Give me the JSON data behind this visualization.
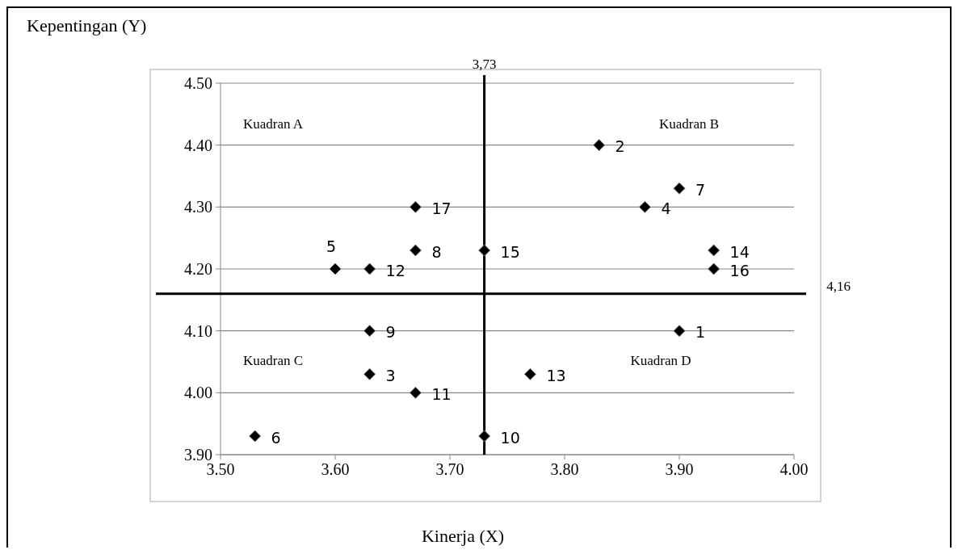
{
  "chart_data": {
    "type": "scatter",
    "xlabel": "Kinerja (X)",
    "ylabel": "Kepentingan (Y)",
    "x": [
      3.9,
      3.83,
      3.63,
      3.87,
      3.6,
      3.53,
      3.9,
      3.67,
      3.63,
      3.73,
      3.67,
      3.63,
      3.77,
      3.93,
      3.73,
      3.93,
      3.67
    ],
    "values": [
      4.1,
      4.4,
      4.03,
      4.3,
      4.2,
      3.93,
      4.33,
      4.23,
      4.1,
      3.93,
      4.0,
      4.2,
      4.03,
      4.23,
      4.23,
      4.2,
      4.3
    ],
    "color": "#000000",
    "marker": "diamond",
    "xlim": [
      3.5,
      4.0
    ],
    "xticks": [
      {
        "value": 3.5,
        "label": "3.50"
      },
      {
        "value": 3.6,
        "label": "3.60"
      },
      {
        "value": 3.7,
        "label": "3.70"
      },
      {
        "value": 3.8,
        "label": "3.80"
      },
      {
        "value": 3.9,
        "label": "3.90"
      },
      {
        "value": 4.0,
        "label": "4.00"
      }
    ],
    "ylim": [
      3.9,
      4.5
    ],
    "yticks": [
      {
        "value": 3.9,
        "label": "3.90"
      },
      {
        "value": 4.0,
        "label": "4.00"
      },
      {
        "value": 4.1,
        "label": "4.10"
      },
      {
        "value": 4.2,
        "label": "4.20"
      },
      {
        "value": 4.3,
        "label": "4.30"
      },
      {
        "value": 4.4,
        "label": "4.40"
      },
      {
        "value": 4.5,
        "label": "4.50"
      }
    ],
    "grid": "y",
    "ref_lines": [
      {
        "axis": "x",
        "value": 3.73,
        "label": "3,73",
        "color": "#000000"
      },
      {
        "axis": "y",
        "value": 4.16,
        "label": "4,16",
        "color": "#000000"
      }
    ],
    "annotations": [
      "Kuadran A",
      "Kuadran B",
      "Kuadran C",
      "Kuadran D",
      {
        "text": "1",
        "x": 3.9,
        "y": 4.1
      },
      {
        "text": "2",
        "x": 3.83,
        "y": 4.4
      },
      {
        "text": "3",
        "x": 3.63,
        "y": 4.03
      },
      {
        "text": "4",
        "x": 3.87,
        "y": 4.3
      },
      {
        "text": "5",
        "x": 3.6,
        "y": 4.2
      },
      {
        "text": "6",
        "x": 3.53,
        "y": 3.93
      },
      {
        "text": "7",
        "x": 3.9,
        "y": 4.33
      },
      {
        "text": "8",
        "x": 3.67,
        "y": 4.23
      },
      {
        "text": "9",
        "x": 3.63,
        "y": 4.1
      },
      {
        "text": "10",
        "x": 3.73,
        "y": 3.93
      },
      {
        "text": "11",
        "x": 3.67,
        "y": 4.0
      },
      {
        "text": "12",
        "x": 3.63,
        "y": 4.2
      },
      {
        "text": "13",
        "x": 3.77,
        "y": 4.03
      },
      {
        "text": "14",
        "x": 3.93,
        "y": 4.23
      },
      {
        "text": "15",
        "x": 3.73,
        "y": 4.23
      },
      {
        "text": "16",
        "x": 3.93,
        "y": 4.2
      },
      {
        "text": "17",
        "x": 3.67,
        "y": 4.3
      }
    ]
  }
}
